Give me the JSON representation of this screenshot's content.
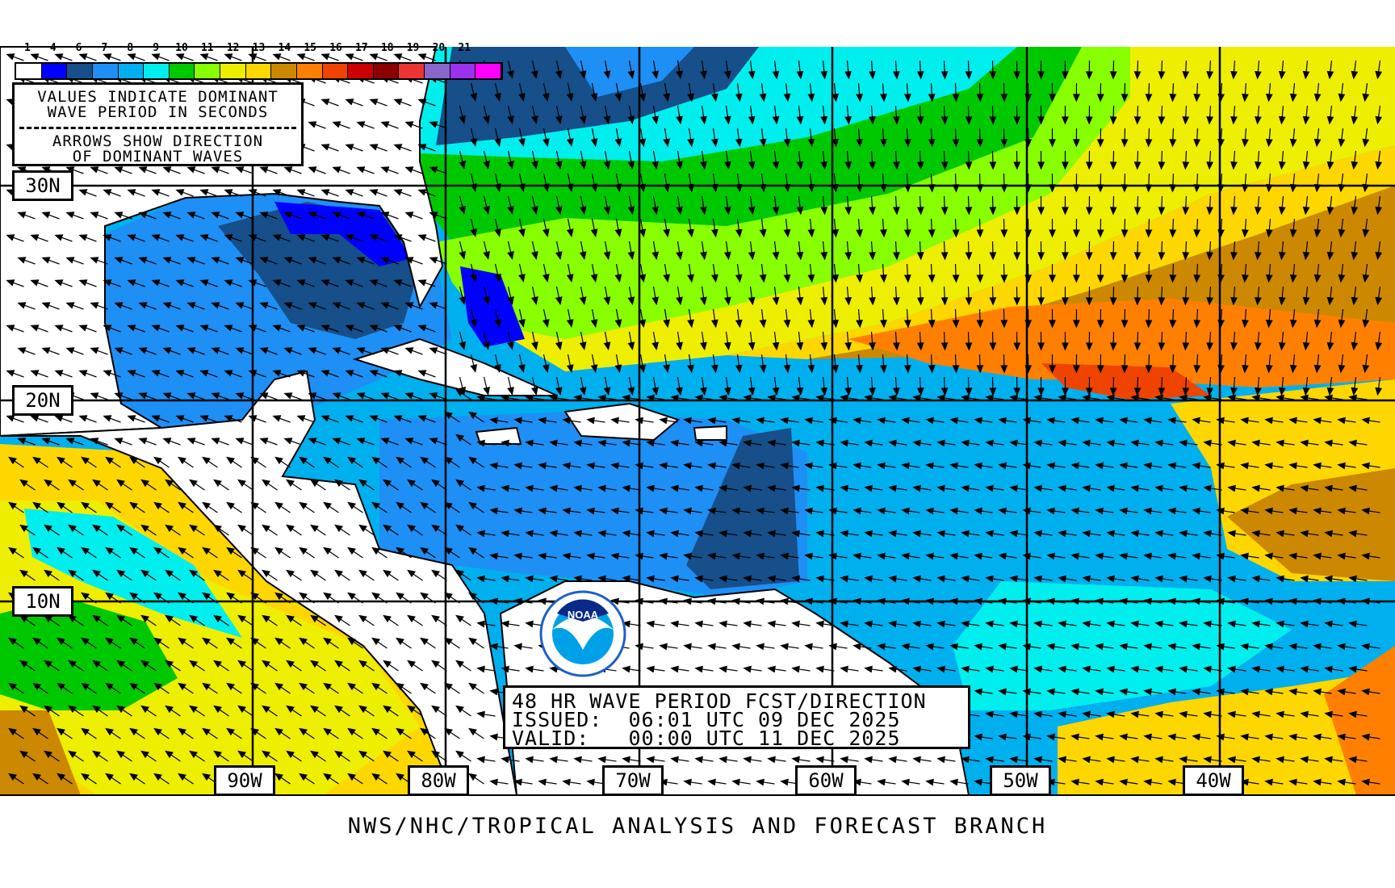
{
  "legend": {
    "labels": [
      "1",
      "4",
      "6",
      "7",
      "8",
      "9",
      "10",
      "11",
      "12",
      "13",
      "14",
      "15",
      "16",
      "17",
      "18",
      "19",
      "20",
      "21"
    ],
    "colors": [
      "#ffffff",
      "#0000ff",
      "#164f8a",
      "#1e8ff5",
      "#00b0ee",
      "#00eeee",
      "#00c800",
      "#88ff00",
      "#eeee00",
      "#ffd700",
      "#cc8800",
      "#ff8000",
      "#ee4400",
      "#cc0000",
      "#8b0000",
      "#ee3333",
      "#8866cc",
      "#9933ee",
      "#ff00ff"
    ]
  },
  "info_box": {
    "line1": "VALUES INDICATE DOMINANT",
    "line2": "WAVE PERIOD IN SECONDS",
    "line3": "ARROWS SHOW DIRECTION",
    "line4": "OF DOMINANT WAVES"
  },
  "title_box": {
    "line1": "48 HR WAVE PERIOD FCST/DIRECTION",
    "line2": "ISSUED:  06:01 UTC 09 DEC 2025",
    "line3": "VALID:   00:00 UTC 11 DEC 2025"
  },
  "latitudes": [
    "30N",
    "20N",
    "10N"
  ],
  "longitudes": [
    "90W",
    "80W",
    "70W",
    "60W",
    "50W",
    "40W"
  ],
  "logo": {
    "text": "NOAA",
    "ring_text": "NATIONAL OCEANIC AND ATMOSPHERIC ADMINISTRATION · U.S. DEPARTMENT OF COMMERCE"
  },
  "footer": "NWS/NHC/TROPICAL ANALYSIS AND FORECAST BRANCH"
}
